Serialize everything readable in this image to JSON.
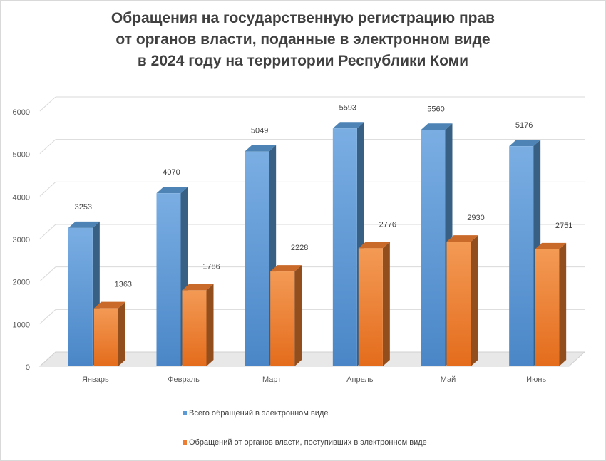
{
  "chart_data": {
    "type": "bar",
    "title_lines": [
      "Обращения на государственную регистрацию прав",
      "от органов власти, поданные в электронном виде",
      "в 2024 году на территории Республики Коми"
    ],
    "categories": [
      "Январь",
      "Февраль",
      "Март",
      "Апрель",
      "Май",
      "Июнь"
    ],
    "series": [
      {
        "name": "Всего обращений в электронном виде",
        "values": [
          3253,
          4070,
          5049,
          5593,
          5560,
          5176
        ],
        "color": "#5b9bd5"
      },
      {
        "name": "Обращений от органов власти, поступивших в электронном виде",
        "values": [
          1363,
          1786,
          2228,
          2776,
          2930,
          2751
        ],
        "color": "#ed7d31"
      }
    ],
    "ylim": [
      0,
      6000
    ],
    "yticks": [
      "0",
      "1000",
      "2000",
      "3000",
      "4000",
      "5000",
      "6000"
    ],
    "grid": true,
    "legend_position": "bottom",
    "style": "3d clustered column"
  }
}
